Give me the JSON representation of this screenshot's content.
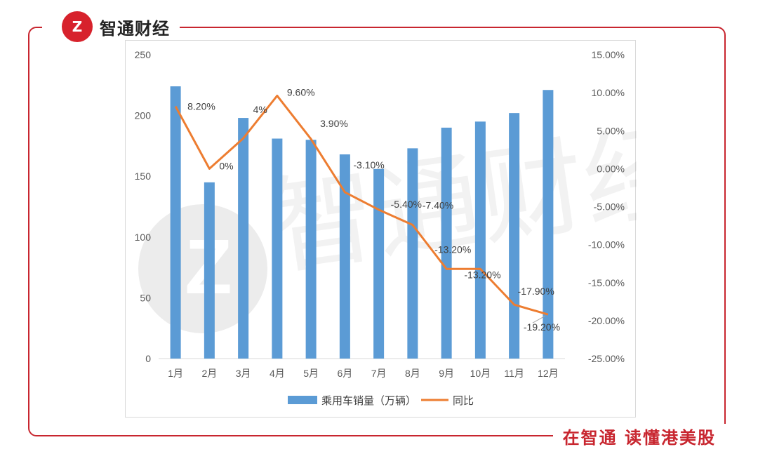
{
  "brand": {
    "logo": "Z",
    "name": "智通财经"
  },
  "slogan": "在智通 读懂港美股",
  "watermark": {
    "text": "智通财经"
  },
  "colors": {
    "bar": "#5b9bd5",
    "line": "#ed7d31",
    "frame": "#c8262f"
  },
  "chart_data": {
    "type": "bar",
    "categories": [
      "1月",
      "2月",
      "3月",
      "4月",
      "5月",
      "6月",
      "7月",
      "8月",
      "9月",
      "10月",
      "11月",
      "12月"
    ],
    "series": [
      {
        "name": "乘用车销量（万辆）",
        "type": "bar",
        "axis": "left",
        "values": [
          224,
          145,
          198,
          181,
          180,
          168,
          156,
          173,
          190,
          195,
          202,
          221
        ]
      },
      {
        "name": "同比",
        "type": "line",
        "axis": "right",
        "values": [
          8.2,
          0,
          4,
          9.6,
          3.9,
          -3.1,
          -5.4,
          -7.4,
          -13.2,
          -13.2,
          -17.9,
          -19.2
        ],
        "labels": [
          "8.20%",
          "0%",
          "4%",
          "9.60%",
          "3.90%",
          "-3.10%",
          "-5.40%",
          "-7.40%",
          "-13.20%",
          "-13.20%",
          "-17.90%",
          "-19.20%"
        ]
      }
    ],
    "left_axis": {
      "ylim": [
        0,
        250
      ],
      "ticks": [
        "0",
        "50",
        "100",
        "150",
        "200",
        "250"
      ]
    },
    "right_axis": {
      "ylim": [
        -25,
        15
      ],
      "ticks": [
        "-25.00%",
        "-20.00%",
        "-15.00%",
        "-10.00%",
        "-5.00%",
        "0.00%",
        "5.00%",
        "10.00%",
        "15.00%"
      ]
    },
    "legend_position": "bottom"
  }
}
